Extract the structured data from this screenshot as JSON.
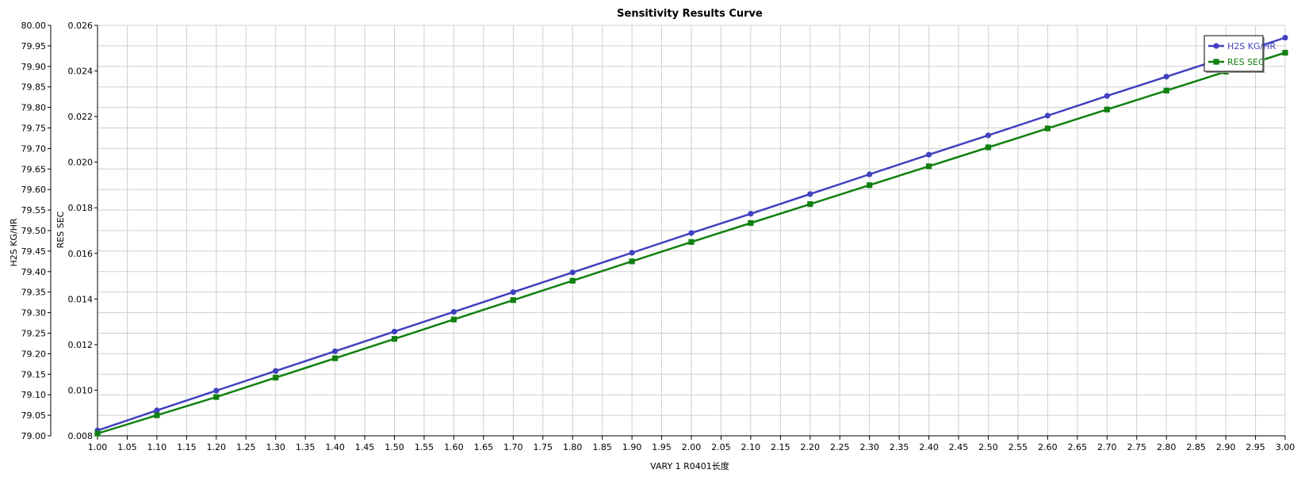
{
  "chart_data": {
    "type": "line",
    "title": "Sensitivity Results Curve",
    "xlabel": "VARY   1 R0401长度",
    "xlim": [
      1.0,
      3.0
    ],
    "xticks": [
      "1.00",
      "1.05",
      "1.10",
      "1.15",
      "1.20",
      "1.25",
      "1.30",
      "1.35",
      "1.40",
      "1.45",
      "1.50",
      "1.55",
      "1.60",
      "1.65",
      "1.70",
      "1.75",
      "1.80",
      "1.85",
      "1.90",
      "1.95",
      "2.00",
      "2.05",
      "2.10",
      "2.15",
      "2.20",
      "2.25",
      "2.30",
      "2.35",
      "2.40",
      "2.45",
      "2.50",
      "2.55",
      "2.60",
      "2.65",
      "2.70",
      "2.75",
      "2.80",
      "2.85",
      "2.90",
      "2.95",
      "3.00"
    ],
    "grid": true,
    "legend_position": "top-right",
    "y_axes": [
      {
        "id": "left1",
        "label": "H2S KG/HR",
        "ylim": [
          79.0,
          80.0
        ],
        "ticks": [
          "79.00",
          "79.05",
          "79.10",
          "79.15",
          "79.20",
          "79.25",
          "79.30",
          "79.35",
          "79.40",
          "79.45",
          "79.50",
          "79.55",
          "79.60",
          "79.65",
          "79.70",
          "79.75",
          "79.80",
          "79.85",
          "79.90",
          "79.95",
          "80.00"
        ]
      },
      {
        "id": "left2",
        "label": "RES SEC",
        "ylim": [
          0.008,
          0.026
        ],
        "ticks": [
          "0.008",
          "0.010",
          "0.012",
          "0.014",
          "0.016",
          "0.018",
          "0.020",
          "0.022",
          "0.024",
          "0.026"
        ]
      }
    ],
    "x": [
      1.0,
      1.1,
      1.2,
      1.3,
      1.4,
      1.5,
      1.6,
      1.7,
      1.8,
      1.9,
      2.0,
      2.1,
      2.2,
      2.3,
      2.4,
      2.5,
      2.6,
      2.7,
      2.8,
      2.9,
      3.0
    ],
    "series": [
      {
        "name": "H2S KG/HR",
        "axis": "left1",
        "color": "#4040c0",
        "marker": "circle",
        "values": [
          79.013,
          79.062,
          79.11,
          79.158,
          79.206,
          79.254,
          79.302,
          79.35,
          79.398,
          79.446,
          79.494,
          79.541,
          79.589,
          79.637,
          79.685,
          79.732,
          79.78,
          79.828,
          79.875,
          79.922,
          79.97
        ]
      },
      {
        "name": "RES SEC",
        "axis": "left2",
        "color": "#108010",
        "marker": "square",
        "values": [
          0.0081,
          0.0089,
          0.0097,
          0.01055,
          0.0114,
          0.01225,
          0.0131,
          0.01395,
          0.0148,
          0.01565,
          0.0165,
          0.01733,
          0.01816,
          0.01899,
          0.01982,
          0.02065,
          0.02148,
          0.02231,
          0.02314,
          0.02397,
          0.0248
        ]
      }
    ]
  }
}
